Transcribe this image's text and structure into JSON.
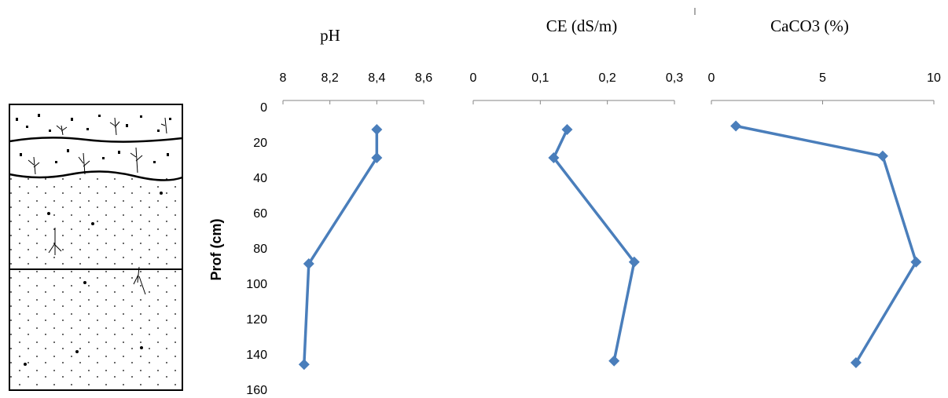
{
  "chart_data": [
    {
      "type": "line",
      "title": "pH",
      "ylabel": "Prof (cm)",
      "color": "#4a7ebb",
      "x": [
        8.4,
        8.4,
        8.11,
        8.09
      ],
      "values": [
        12,
        28,
        88,
        145
      ],
      "xlim": [
        8,
        8.6
      ],
      "xticks": [
        8,
        {
          "value": 8.2,
          "label": "8,2"
        },
        {
          "value": 8.4,
          "label": "8,4"
        },
        {
          "value": 8.6,
          "label": "8,6"
        }
      ],
      "ylim": [
        0,
        160
      ],
      "yticks": [
        0,
        20,
        40,
        60,
        80,
        100,
        120,
        140,
        160
      ]
    },
    {
      "type": "line",
      "title": "CE (dS/m)",
      "color": "#4a7ebb",
      "x": [
        0.14,
        0.12,
        0.24,
        0.21
      ],
      "values": [
        12,
        28,
        87,
        143
      ],
      "xlim": [
        0,
        0.3
      ],
      "xticks": [
        0,
        {
          "value": 0.1,
          "label": "0,1"
        },
        {
          "value": 0.2,
          "label": "0,2"
        },
        {
          "value": 0.3,
          "label": "0,3"
        }
      ],
      "ylim": [
        0,
        160
      ]
    },
    {
      "type": "line",
      "title": "CaCO3 (%)",
      "color": "#4a7ebb",
      "x": [
        1.1,
        7.7,
        9.2,
        6.5
      ],
      "values": [
        10,
        27,
        87,
        144
      ],
      "xlim": [
        0,
        10
      ],
      "xticks": [
        0,
        5,
        10
      ],
      "ylim": [
        0,
        160
      ]
    }
  ]
}
